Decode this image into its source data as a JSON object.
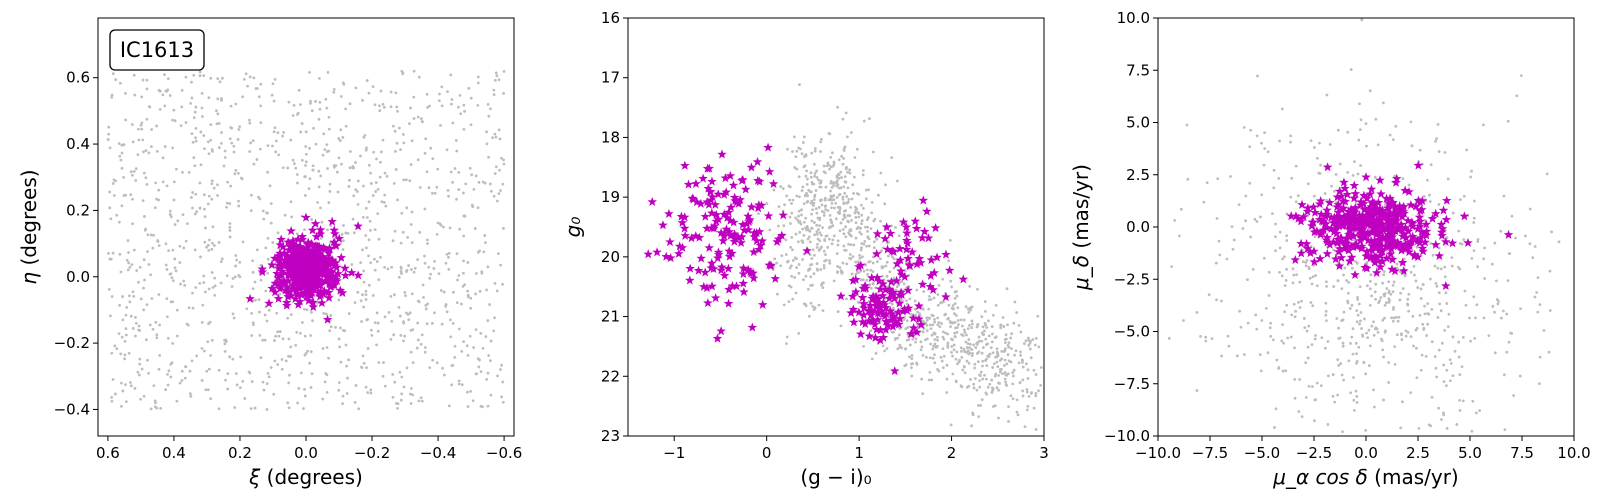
{
  "colors": {
    "background_stars": "#bdbdbd",
    "members": "#c000c0",
    "axis": "#000000"
  },
  "chart_data": [
    {
      "type": "scatter",
      "label_box": "IC1613",
      "xlabel_symbol": "ξ",
      "xlabel_unit": " (degrees)",
      "ylabel_symbol": "η",
      "ylabel_unit": " (degrees)",
      "xlim": [
        0.63,
        -0.63
      ],
      "ylim": [
        -0.48,
        0.78
      ],
      "xticks": [
        0.6,
        0.4,
        0.2,
        0.0,
        -0.2,
        -0.4,
        -0.6
      ],
      "xtick_labels": [
        "0.6",
        "0.4",
        "0.2",
        "0.0",
        "−0.2",
        "−0.4",
        "−0.6"
      ],
      "yticks": [
        -0.4,
        -0.2,
        0.0,
        0.2,
        0.4,
        0.6
      ],
      "ytick_labels": [
        "−0.4",
        "−0.2",
        "0.0",
        "0.2",
        "0.4",
        "0.6"
      ],
      "series": [
        {
          "role": "background",
          "marker": "dot",
          "distribution": "uniform",
          "x_range": [
            0.6,
            -0.6
          ],
          "y_range": [
            -0.4,
            0.62
          ],
          "count": 1200
        },
        {
          "role": "members",
          "marker": "star",
          "distribution": "gaussian",
          "center": [
            0.0,
            0.02
          ],
          "sigma": [
            0.05,
            0.05
          ],
          "count": 420
        }
      ]
    },
    {
      "type": "scatter",
      "xlabel_symbol": "(g − i)₀",
      "ylabel_symbol": "g₀",
      "xlim": [
        -1.5,
        3.0
      ],
      "ylim": [
        23.0,
        16.0
      ],
      "xticks": [
        -1,
        0,
        1,
        2,
        3
      ],
      "xtick_labels": [
        "−1",
        "0",
        "1",
        "2",
        "3"
      ],
      "yticks": [
        16,
        17,
        18,
        19,
        20,
        21,
        22,
        23
      ],
      "ytick_labels": [
        "16",
        "17",
        "18",
        "19",
        "20",
        "21",
        "22",
        "23"
      ],
      "series": [
        {
          "role": "background",
          "marker": "dot",
          "distribution": "band",
          "points": [
            [
              0.4,
              20.4
            ],
            [
              0.6,
              18.5
            ],
            [
              0.9,
              19.6
            ],
            [
              1.5,
              21.0
            ],
            [
              2.2,
              21.5
            ],
            [
              2.8,
              22.0
            ]
          ],
          "count": 1100
        },
        {
          "role": "members",
          "marker": "star",
          "distribution": "gaussian",
          "center": [
            -0.45,
            19.7
          ],
          "sigma": [
            0.3,
            0.6
          ],
          "count": 160
        },
        {
          "role": "members",
          "marker": "star",
          "distribution": "gaussian",
          "center": [
            1.25,
            20.9
          ],
          "sigma": [
            0.18,
            0.25
          ],
          "count": 100
        },
        {
          "role": "members",
          "marker": "star",
          "distribution": "gaussian",
          "center": [
            1.6,
            20.0
          ],
          "sigma": [
            0.25,
            0.45
          ],
          "count": 50
        }
      ]
    },
    {
      "type": "scatter",
      "xlabel_symbol": "μ_α cos δ",
      "xlabel_unit": " (mas/yr)",
      "ylabel_symbol": "μ_δ",
      "ylabel_unit": " (mas/yr)",
      "xlim": [
        -10.0,
        10.0
      ],
      "ylim": [
        -10.0,
        10.0
      ],
      "xticks": [
        -10.0,
        -7.5,
        -5.0,
        -2.5,
        0.0,
        2.5,
        5.0,
        7.5,
        10.0
      ],
      "xtick_labels": [
        "−10.0",
        "−7.5",
        "−5.0",
        "−2.5",
        "0.0",
        "2.5",
        "5.0",
        "7.5",
        "10.0"
      ],
      "yticks": [
        -10.0,
        -7.5,
        -5.0,
        -2.5,
        0.0,
        2.5,
        5.0,
        7.5,
        10.0
      ],
      "ytick_labels": [
        "−10.0",
        "−7.5",
        "−5.0",
        "−2.5",
        "0.0",
        "2.5",
        "5.0",
        "7.5",
        "10.0"
      ],
      "series": [
        {
          "role": "background",
          "marker": "dot",
          "distribution": "gaussian",
          "center": [
            0.0,
            -3.0
          ],
          "sigma": [
            4.0,
            4.0
          ],
          "count": 700
        },
        {
          "role": "members",
          "marker": "star",
          "distribution": "gaussian",
          "center": [
            0.3,
            0.0
          ],
          "sigma": [
            1.6,
            0.9
          ],
          "count": 440
        }
      ]
    }
  ]
}
